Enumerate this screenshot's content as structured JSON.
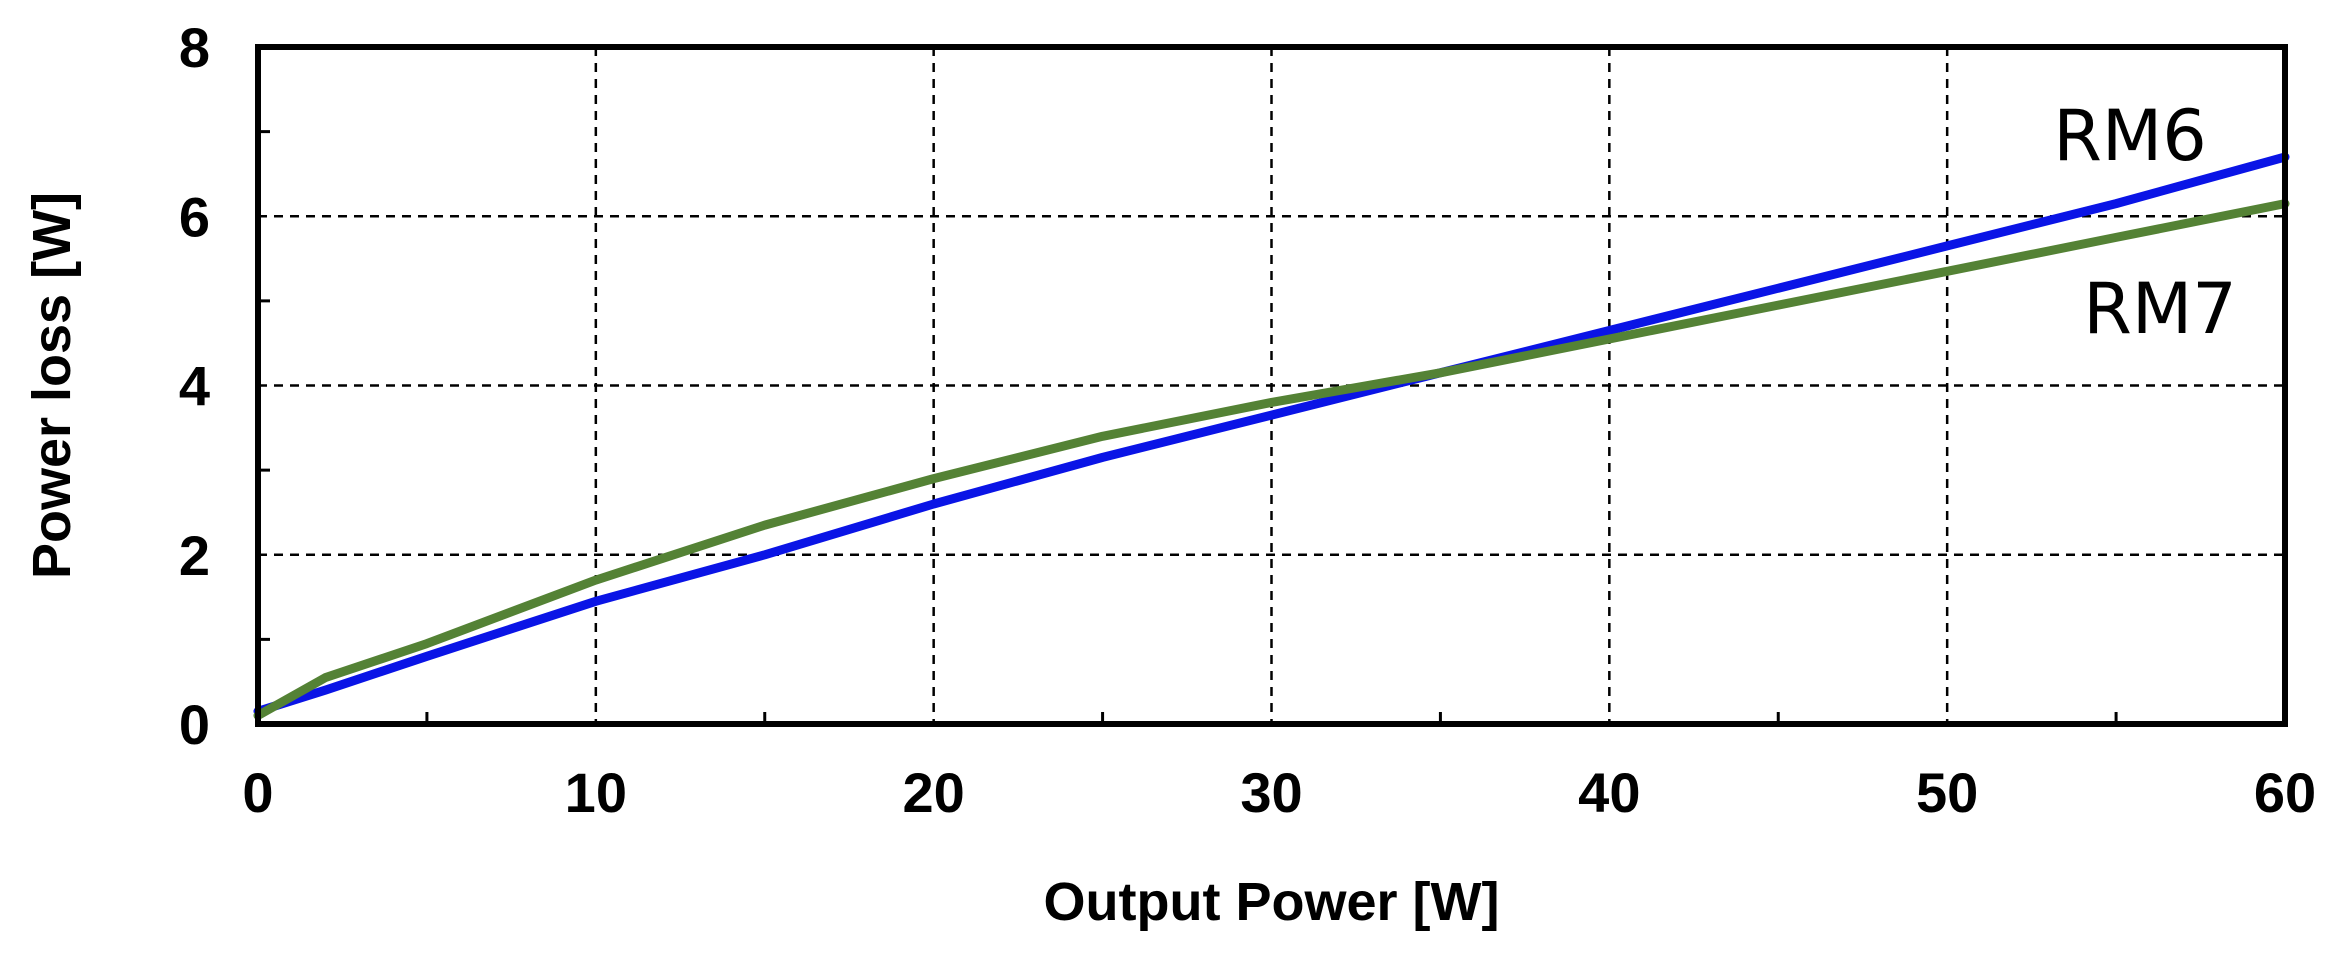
{
  "chart_data": {
    "type": "line",
    "title": "",
    "xlabel": "Output Power [W]",
    "ylabel": "Power loss [W]",
    "xlim": [
      0,
      60
    ],
    "ylim": [
      0,
      8
    ],
    "xticks": [
      0,
      10,
      20,
      30,
      40,
      50,
      60
    ],
    "yticks": [
      0,
      2,
      4,
      6,
      8
    ],
    "xtick_labels": [
      "0",
      "10",
      "20",
      "30",
      "40",
      "50",
      "60"
    ],
    "ytick_labels": [
      "0",
      "2",
      "4",
      "6",
      "8"
    ],
    "grid": true,
    "legend": "inline labels at right end of lines",
    "series": [
      {
        "name": "RM6",
        "color": "#0a14e6",
        "x": [
          0,
          2,
          5,
          10,
          15,
          20,
          25,
          30,
          35,
          40,
          45,
          50,
          55,
          60
        ],
        "y": [
          0.15,
          0.4,
          0.8,
          1.45,
          2.0,
          2.6,
          3.15,
          3.65,
          4.15,
          4.65,
          5.15,
          5.65,
          6.15,
          6.7
        ]
      },
      {
        "name": "RM7",
        "color": "#548235",
        "x": [
          0,
          2,
          5,
          10,
          15,
          20,
          25,
          30,
          35,
          40,
          45,
          50,
          55,
          60
        ],
        "y": [
          0.1,
          0.55,
          0.95,
          1.7,
          2.35,
          2.9,
          3.4,
          3.8,
          4.15,
          4.55,
          4.95,
          5.35,
          5.75,
          6.15
        ]
      }
    ]
  }
}
